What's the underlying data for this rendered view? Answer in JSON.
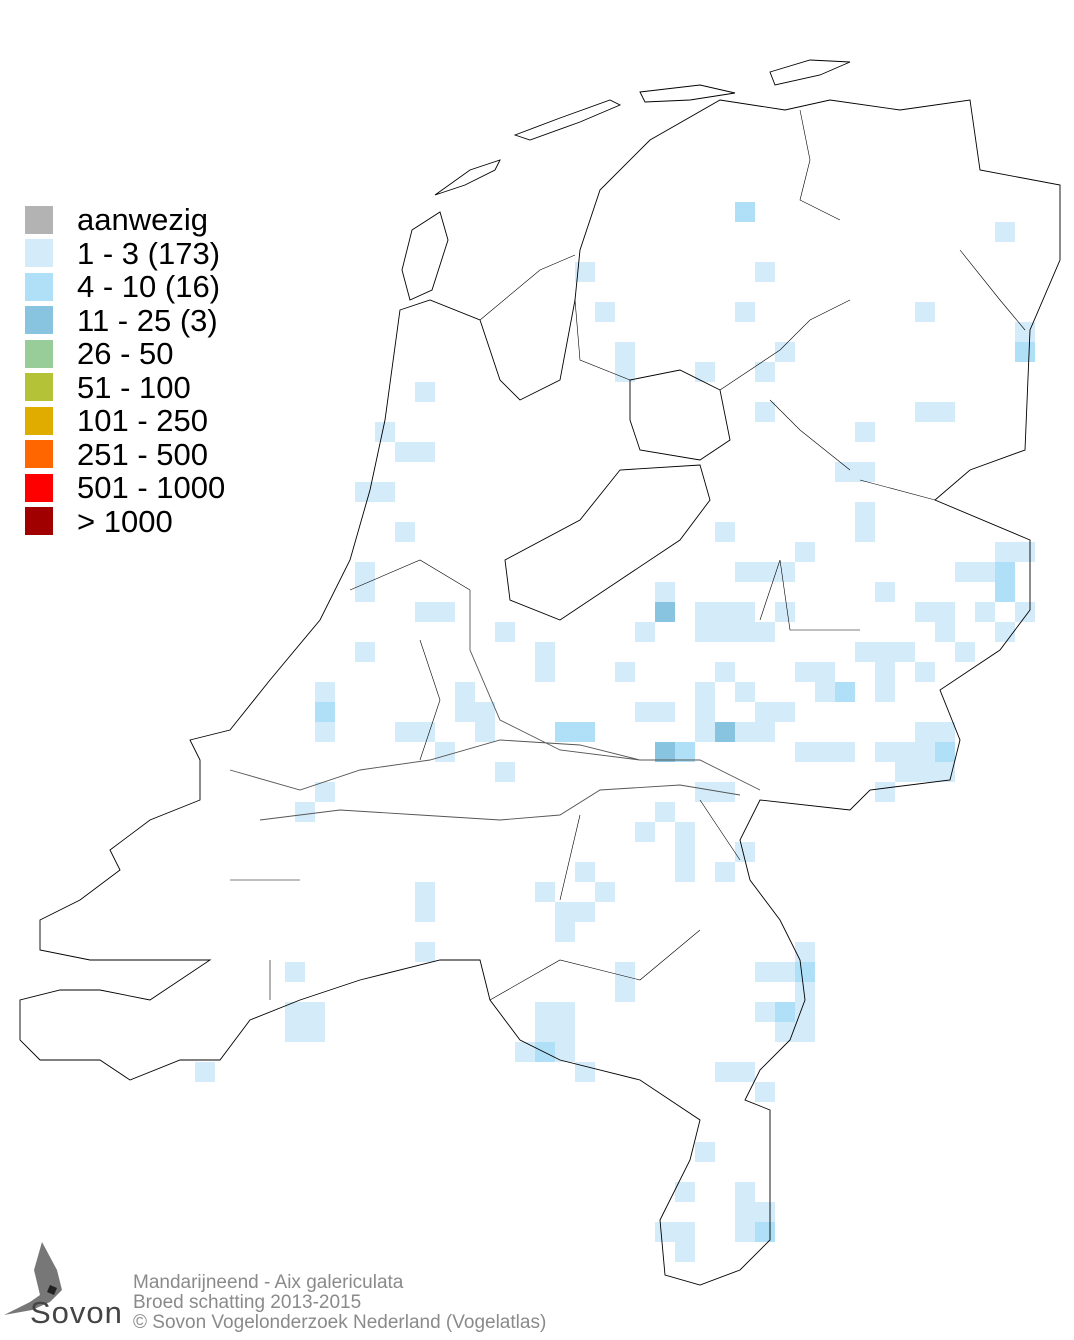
{
  "legend": {
    "items": [
      {
        "label": "aanwezig",
        "color": "#b3b3b3"
      },
      {
        "label": "1 - 3 (173)",
        "color": "#d4ecfa"
      },
      {
        "label": "4 - 10 (16)",
        "color": "#b0e0f8"
      },
      {
        "label": "11 - 25 (3)",
        "color": "#88c3e0"
      },
      {
        "label": "26 - 50",
        "color": "#98cc98"
      },
      {
        "label": "51 - 100",
        "color": "#b3c237"
      },
      {
        "label": "101 - 250",
        "color": "#e0ac00"
      },
      {
        "label": "251 - 500",
        "color": "#ff6600"
      },
      {
        "label": "501 - 1000",
        "color": "#ff0000"
      },
      {
        "label": "> 1000",
        "color": "#a00000"
      }
    ]
  },
  "credits": {
    "species": "Mandarijneend - Aix galericulata",
    "survey": "Broed schatting 2013-2015",
    "copyright": "© Sovon Vogelonderzoek Nederland (Vogelatlas)"
  },
  "logo": {
    "text": "Sovon",
    "icon": "swallow-icon"
  }
}
